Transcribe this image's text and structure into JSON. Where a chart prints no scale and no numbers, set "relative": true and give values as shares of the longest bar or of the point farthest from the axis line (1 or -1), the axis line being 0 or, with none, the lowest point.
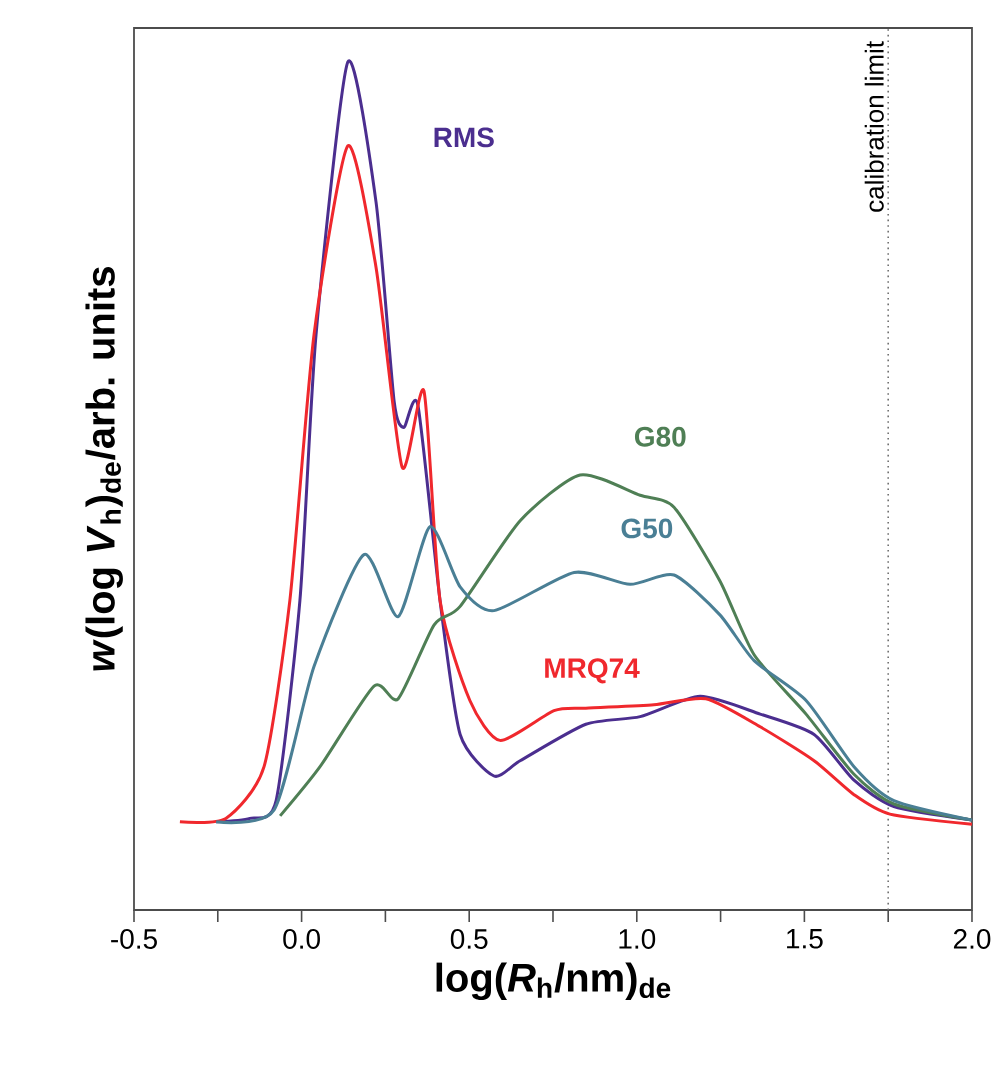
{
  "chart_data": {
    "type": "line",
    "xlabel": "log(*R*$_{h}$/nm)$_{de}$",
    "ylabel": "*w*(log *V*$_{h}$)$_{de}$/arb. units",
    "relative": true,
    "grid": false,
    "tick_labels": "x",
    "xlim": [
      -0.5,
      2.0
    ],
    "xticks": [
      {
        "value": -0.5,
        "label": "-0.5"
      },
      {
        "value": -0.25,
        "label": null
      },
      {
        "value": 0,
        "label": "0.0"
      },
      {
        "value": 0.25,
        "label": null
      },
      {
        "value": 0.5,
        "label": "0.5"
      },
      {
        "value": 0.75,
        "label": null
      },
      {
        "value": 1.0,
        "label": "1.0"
      },
      {
        "value": 1.25,
        "label": null
      },
      {
        "value": 1.5,
        "label": "1.5"
      },
      {
        "value": 1.75,
        "label": null
      },
      {
        "value": 2.0,
        "label": "2.0"
      }
    ],
    "ref_lines": [
      {
        "axis": "x",
        "value": 1.75,
        "label": "calibration limit",
        "color": "#707070",
        "line_style": "dotted"
      }
    ],
    "series": [
      {
        "name": "RMS",
        "color": "#4b2e8f",
        "x": [
          -0.255,
          -0.154,
          -0.076,
          -0.005,
          0.043,
          0.138,
          0.222,
          0.276,
          0.305,
          0.347,
          0.413,
          0.473,
          0.574,
          0.652,
          0.848,
          1.01,
          1.189,
          1.368,
          1.529,
          1.648,
          1.767,
          2.0
        ],
        "values": [
          0.104,
          0.108,
          0.129,
          0.365,
          0.678,
          1.0,
          0.835,
          0.6,
          0.569,
          0.595,
          0.365,
          0.207,
          0.158,
          0.176,
          0.219,
          0.228,
          0.252,
          0.231,
          0.207,
          0.153,
          0.122,
          0.106
        ]
      },
      {
        "name": "MRQ74",
        "color": "#f0282d",
        "x": [
          -0.363,
          -0.226,
          -0.112,
          -0.035,
          0.037,
          0.138,
          0.222,
          0.3,
          0.365,
          0.413,
          0.502,
          0.592,
          0.753,
          0.848,
          1.051,
          1.206,
          1.368,
          1.529,
          1.648,
          1.755,
          2.0
        ],
        "values": [
          0.104,
          0.108,
          0.169,
          0.365,
          0.678,
          0.901,
          0.758,
          0.522,
          0.612,
          0.365,
          0.247,
          0.2,
          0.235,
          0.238,
          0.242,
          0.249,
          0.216,
          0.176,
          0.136,
          0.113,
          0.101
        ]
      },
      {
        "name": "G80",
        "color": "#4f7f55",
        "x": [
          -0.064,
          0.055,
          0.216,
          0.288,
          0.395,
          0.473,
          0.652,
          0.831,
          1.01,
          1.111,
          1.248,
          1.35,
          1.505,
          1.648,
          1.767,
          2.0
        ],
        "values": [
          0.111,
          0.169,
          0.264,
          0.249,
          0.336,
          0.358,
          0.459,
          0.513,
          0.489,
          0.475,
          0.388,
          0.301,
          0.231,
          0.16,
          0.125,
          0.106
        ]
      },
      {
        "name": "G50",
        "color": "#4a7f95",
        "x": [
          -0.255,
          -0.082,
          0.037,
          0.186,
          0.288,
          0.383,
          0.473,
          0.574,
          0.813,
          0.98,
          1.111,
          1.248,
          1.35,
          1.505,
          1.648,
          1.767,
          2.0
        ],
        "values": [
          0.104,
          0.118,
          0.287,
          0.419,
          0.346,
          0.452,
          0.381,
          0.353,
          0.398,
          0.384,
          0.395,
          0.348,
          0.294,
          0.247,
          0.169,
          0.129,
          0.106
        ]
      }
    ]
  }
}
